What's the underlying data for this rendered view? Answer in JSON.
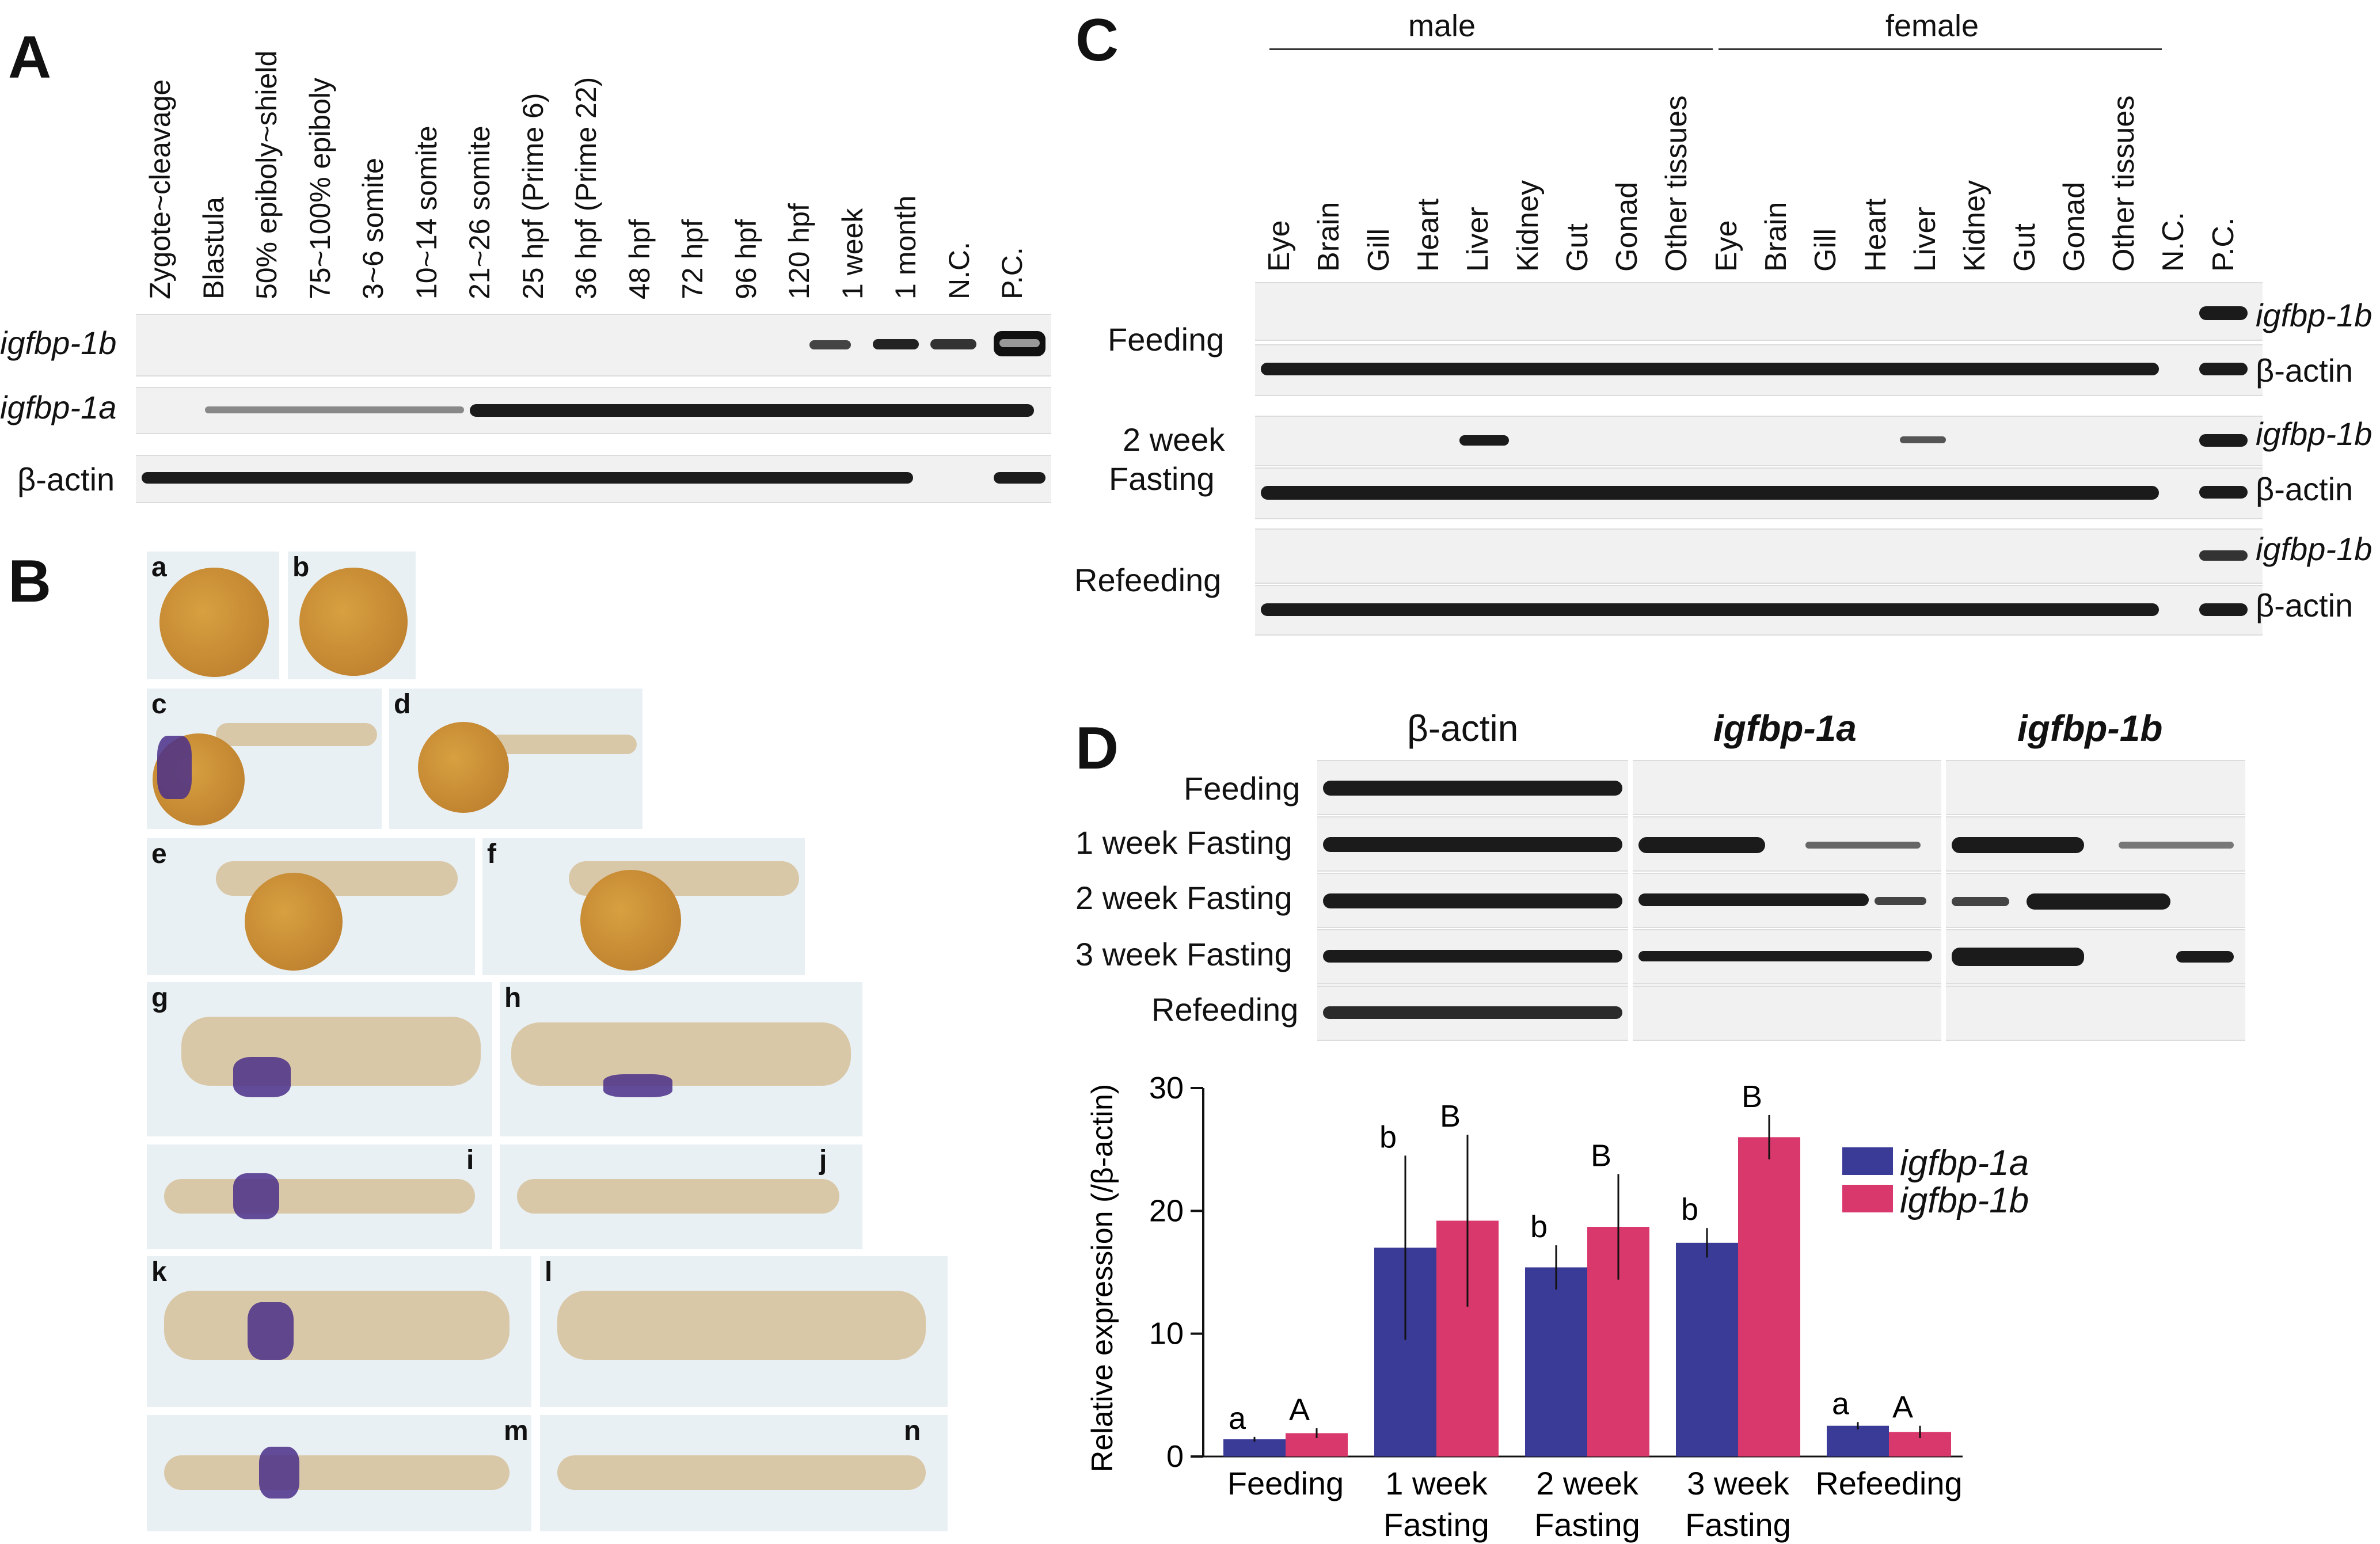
{
  "panels": {
    "A": "A",
    "B": "B",
    "C": "C",
    "D": "D"
  },
  "panelA": {
    "columns": [
      "Zygote~cleavage",
      "Blastula",
      "50% epiboly~shield",
      "75~100% epiboly",
      "3~6 somite",
      "10~14 somite",
      "21~26 somite",
      "25 hpf (Prime 6)",
      "36 hpf (Prime 22)",
      "48 hpf",
      "72 hpf",
      "96 hpf",
      "120 hpf",
      "1 week",
      "1 month",
      "N.C.",
      "P.C."
    ],
    "rows": [
      "igfbp-1b",
      "igfbp-1a",
      "β-actin"
    ]
  },
  "panelB": {
    "images": [
      "a",
      "b",
      "c",
      "d",
      "e",
      "f",
      "g",
      "h",
      "i",
      "j",
      "k",
      "l",
      "m",
      "n"
    ]
  },
  "panelC": {
    "groups": [
      "male",
      "female"
    ],
    "columns": [
      "Eye",
      "Brain",
      "Gill",
      "Heart",
      "Liver",
      "Kidney",
      "Gut",
      "Gonad",
      "Other tissues",
      "Eye",
      "Brain",
      "Gill",
      "Heart",
      "Liver",
      "Kidney",
      "Gut",
      "Gonad",
      "Other tissues",
      "N.C.",
      "P.C."
    ],
    "conditions": [
      "Feeding",
      "2 week",
      "Fasting",
      "Refeeding"
    ],
    "gene_labels": [
      "igfbp-1b",
      "β-actin",
      "igfbp-1b",
      "β-actin",
      "igfbp-1b",
      "β-actin"
    ]
  },
  "panelD": {
    "gel_headers": [
      "β-actin",
      "igfbp-1a",
      "igfbp-1b"
    ],
    "gel_rows": [
      "Feeding",
      "1 week Fasting",
      "2 week Fasting",
      "3 week Fasting",
      "Refeeding"
    ]
  },
  "chart_data": {
    "type": "bar",
    "ylabel": "Relative expression (/β-actin)",
    "ylim": [
      0,
      30
    ],
    "yticks": [
      "0",
      "10",
      "20",
      "30"
    ],
    "categories": [
      [
        "Feeding",
        ""
      ],
      [
        "1 week",
        "Fasting"
      ],
      [
        "2 week",
        "Fasting"
      ],
      [
        "3 week",
        "Fasting"
      ],
      [
        "Refeeding",
        ""
      ]
    ],
    "series": [
      {
        "name": "igfbp-1a",
        "color": "#3a3a97",
        "values": [
          1.4,
          17.0,
          15.4,
          17.4,
          2.5
        ],
        "errors": [
          0.2,
          7.5,
          1.8,
          1.2,
          0.3
        ],
        "letters": [
          "a",
          "b",
          "b",
          "b",
          "a"
        ]
      },
      {
        "name": "igfbp-1b",
        "color": "#d9386c",
        "values": [
          1.9,
          19.2,
          18.7,
          26.0,
          2.0
        ],
        "errors": [
          0.4,
          7.0,
          4.3,
          1.8,
          0.5
        ],
        "letters": [
          "A",
          "B",
          "B",
          "B",
          "A"
        ]
      }
    ],
    "legend": "top-right"
  },
  "colors": {
    "bar_1a": "#3a3a97",
    "bar_1b": "#d9386c",
    "band": "#1b1b1b"
  }
}
